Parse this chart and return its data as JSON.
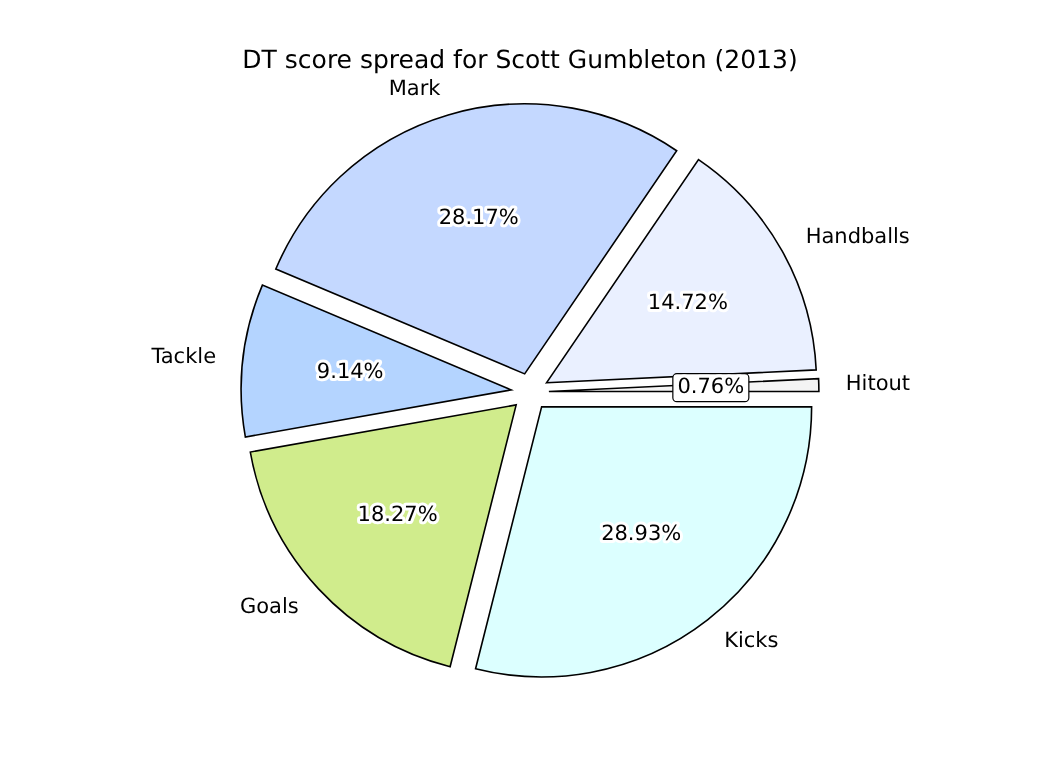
{
  "chart_data": {
    "type": "pie",
    "title": "DT score spread for Scott Gumbleton (2013)",
    "categories": [
      "Hitout",
      "Handballs",
      "Mark",
      "Tackle",
      "Goals",
      "Kicks"
    ],
    "values": [
      0.76,
      14.72,
      28.17,
      9.14,
      18.27,
      28.93
    ],
    "colors": [
      "#f4f4f4",
      "#eaf0ff",
      "#c4d8ff",
      "#b4d4ff",
      "#d0ec8c",
      "#dcffff"
    ],
    "value_labels": [
      "0.76%",
      "14.72%",
      "28.17%",
      "9.14%",
      "18.27%",
      "28.93%"
    ]
  }
}
